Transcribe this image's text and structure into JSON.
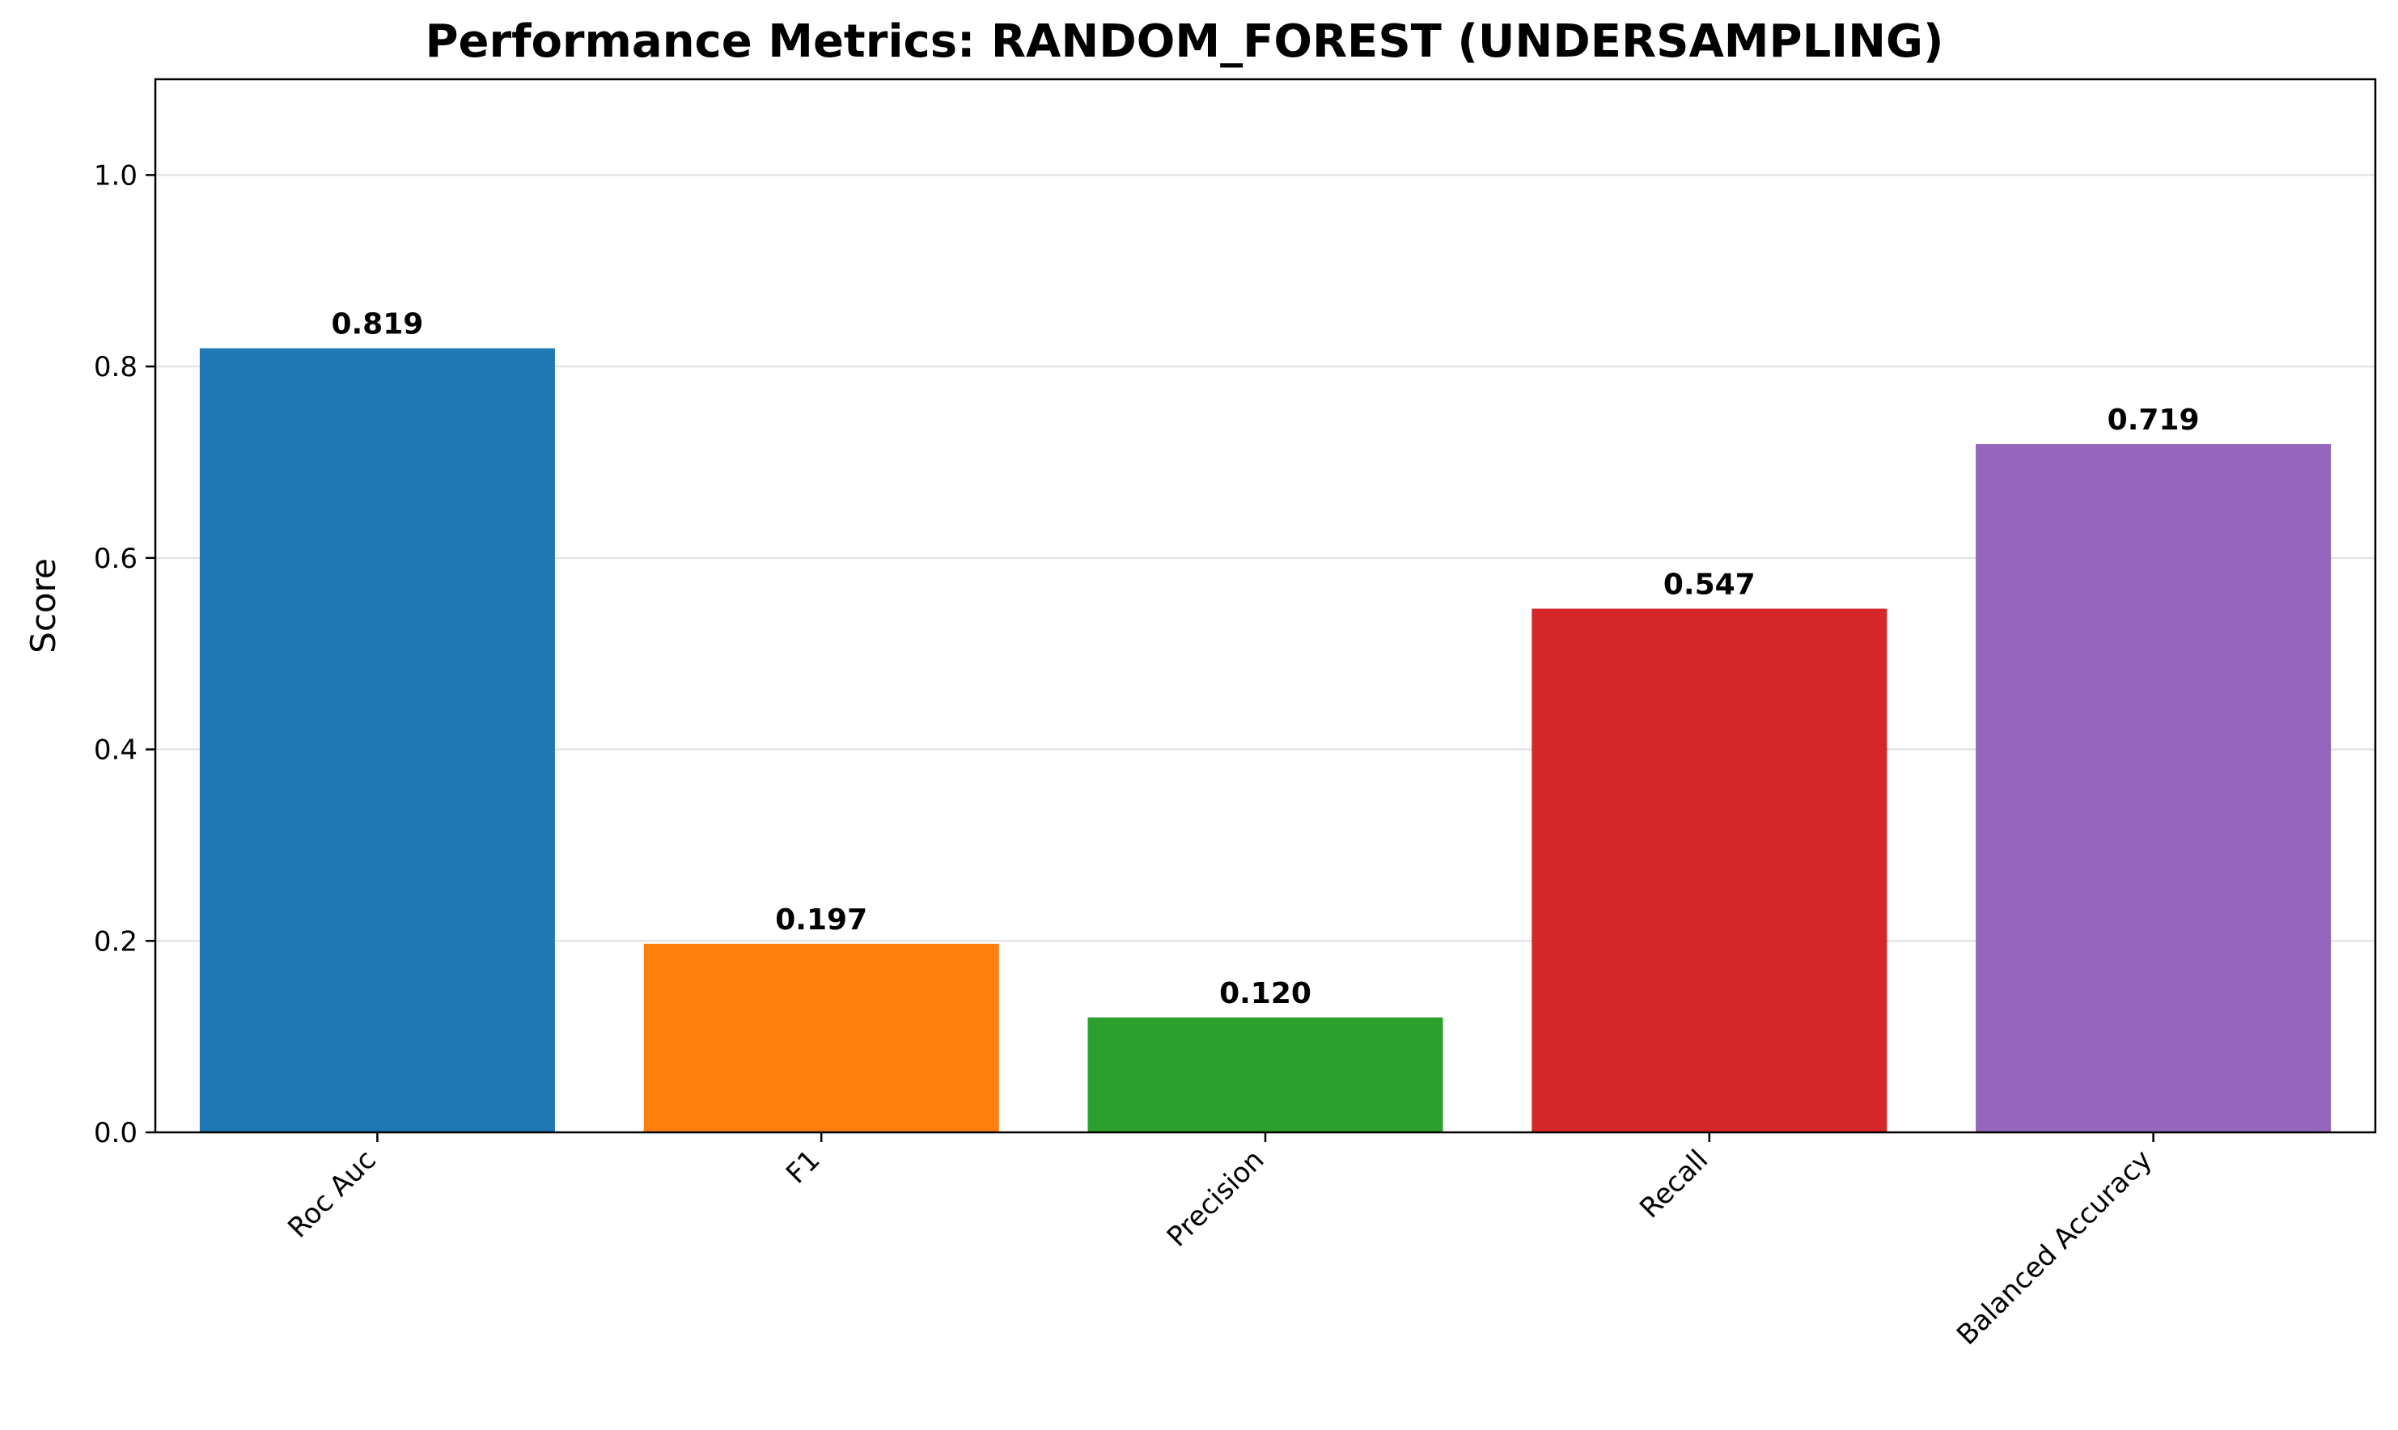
{
  "chart_data": {
    "type": "bar",
    "title": "Performance Metrics: RANDOM_FOREST (UNDERSAMPLING)",
    "xlabel": "",
    "ylabel": "Score",
    "categories": [
      "Roc Auc",
      "F1",
      "Precision",
      "Recall",
      "Balanced Accuracy"
    ],
    "values": [
      0.819,
      0.197,
      0.12,
      0.547,
      0.719
    ],
    "data_labels": [
      "0.819",
      "0.197",
      "0.120",
      "0.547",
      "0.719"
    ],
    "colors": [
      "#1f77b4",
      "#ff7f0e",
      "#2ca02c",
      "#d62728",
      "#9467bd"
    ],
    "ylim": [
      0,
      1.1
    ],
    "yticks": [
      0.0,
      0.2,
      0.4,
      0.6,
      0.8,
      1.0
    ],
    "ytick_labels": [
      "0.0",
      "0.2",
      "0.4",
      "0.6",
      "0.8",
      "1.0"
    ],
    "grid": "y-axis",
    "legend": "none"
  }
}
